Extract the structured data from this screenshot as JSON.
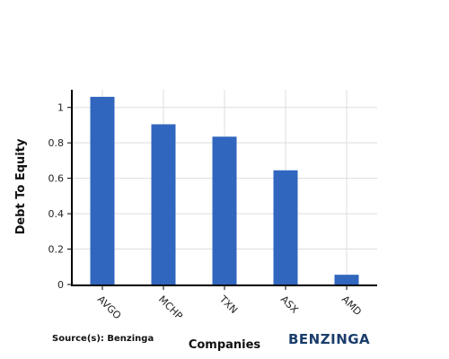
{
  "chart_data": {
    "type": "bar",
    "categories": [
      "AVGO",
      "MCHP",
      "TXN",
      "ASX",
      "AMD"
    ],
    "values": [
      1.06,
      0.905,
      0.835,
      0.645,
      0.055
    ],
    "xlabel": "Companies",
    "ylabel": "Debt To Equity",
    "ylim": [
      0,
      1.1
    ],
    "yticks": [
      "0",
      "0.2",
      "0.4",
      "0.6",
      "0.8",
      "1"
    ],
    "grid": true,
    "bar_color": "#3066be"
  },
  "footer": {
    "source": "Source(s): Benzinga",
    "brand": "BENZINGA"
  }
}
